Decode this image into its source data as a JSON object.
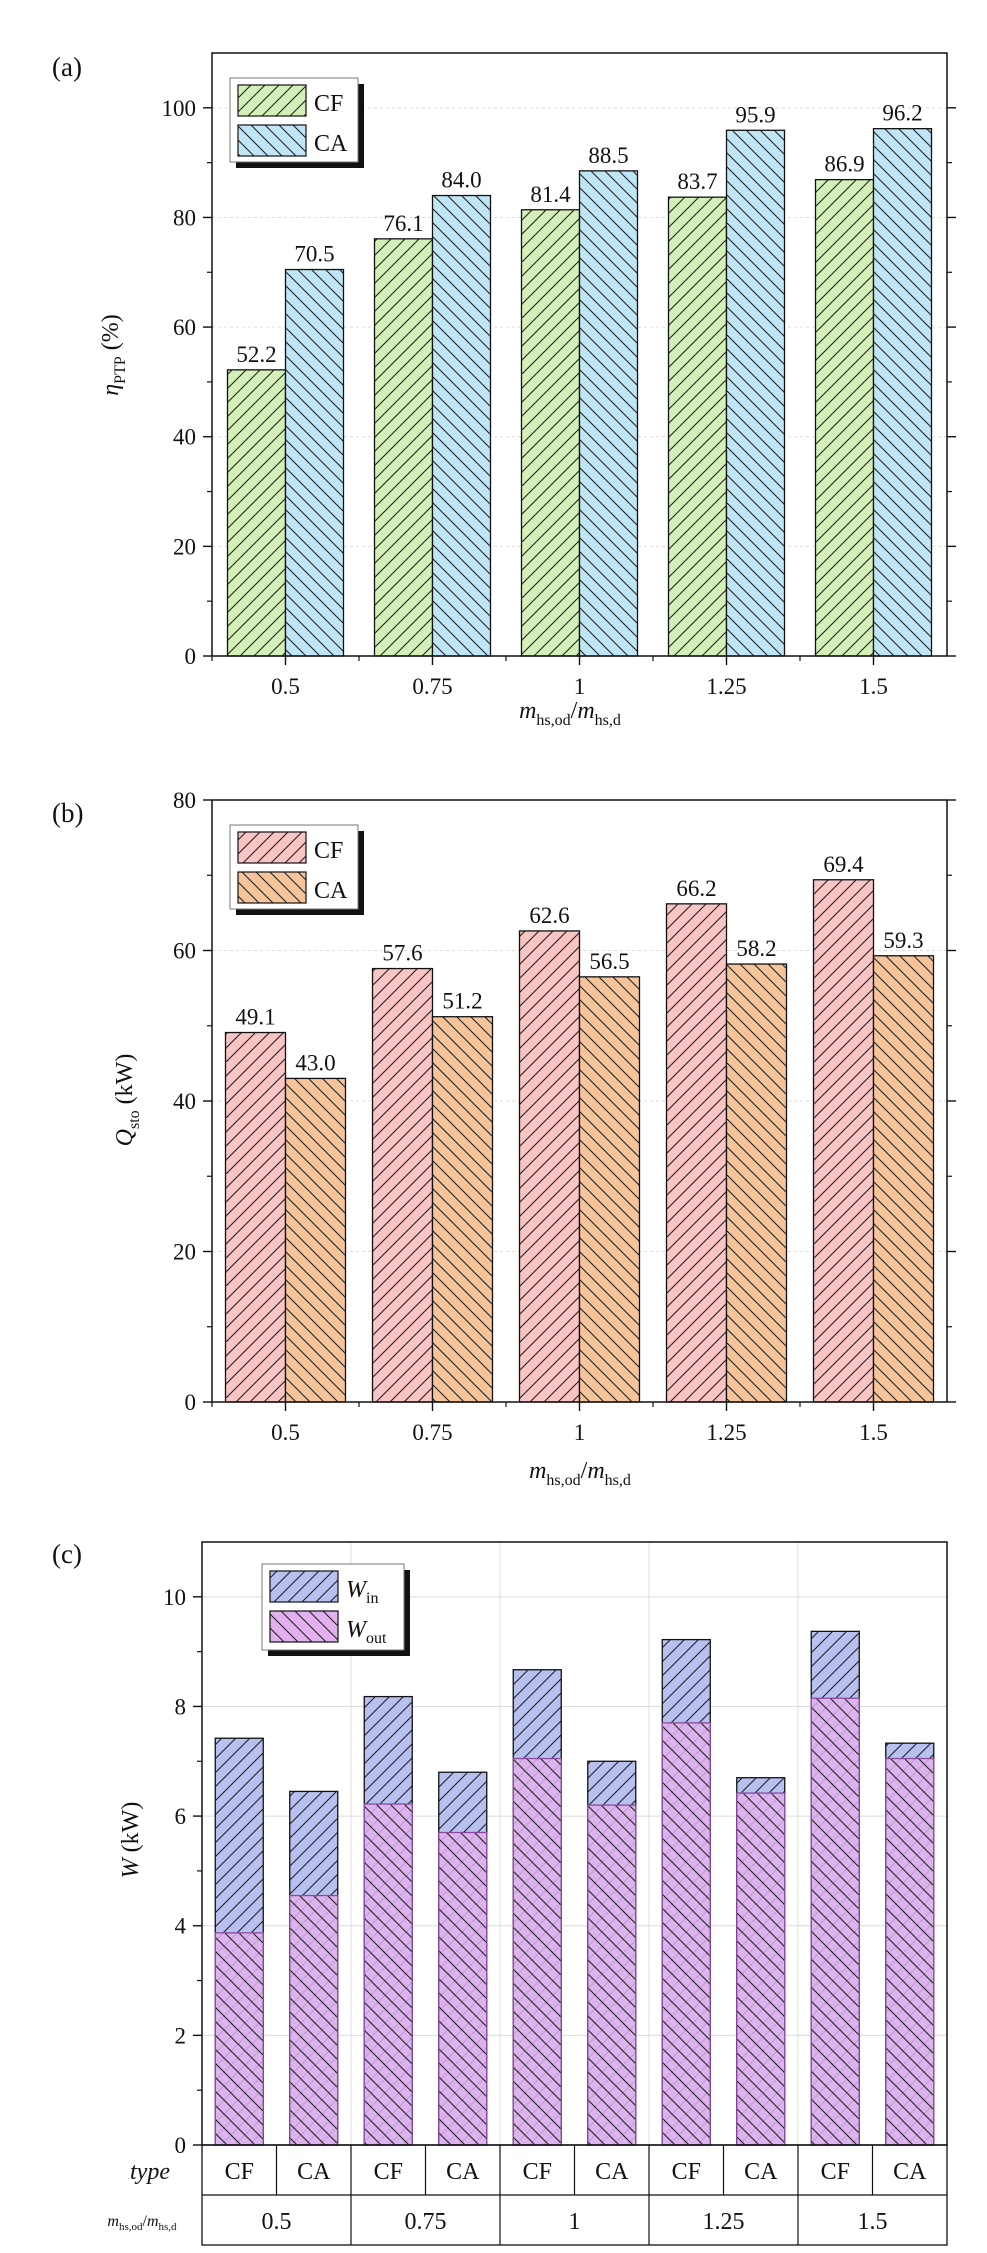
{
  "chart_data": [
    {
      "type": "bar",
      "panel": "(a)",
      "categories": [
        "0.5",
        "0.75",
        "1",
        "1.25",
        "1.5"
      ],
      "series": [
        {
          "name": "CF",
          "values": [
            52.2,
            76.1,
            81.4,
            83.7,
            86.9
          ],
          "labels": [
            "52.2",
            "76.1",
            "81.4",
            "83.7",
            "86.9"
          ],
          "color": "#d4f0b8",
          "hatch": "up"
        },
        {
          "name": "CA",
          "values": [
            70.5,
            84.0,
            88.5,
            95.9,
            96.2
          ],
          "labels": [
            "70.5",
            "84.0",
            "88.5",
            "95.9",
            "96.2"
          ],
          "color": "#bfe6f6",
          "hatch": "down"
        }
      ],
      "ylabel": "η_PTP (%)",
      "ylabel_main": "η",
      "ylabel_sub": "PTP",
      "ylabel_unit": " (%)",
      "xlabel": "m_hs,od/m_hs,d",
      "yticks": [
        "0",
        "20",
        "40",
        "60",
        "80",
        "100"
      ],
      "ylim": [
        0,
        110
      ],
      "legend": "top-left",
      "grid": true
    },
    {
      "type": "bar",
      "panel": "(b)",
      "categories": [
        "0.5",
        "0.75",
        "1",
        "1.25",
        "1.5"
      ],
      "series": [
        {
          "name": "CF",
          "values": [
            49.1,
            57.6,
            62.6,
            66.2,
            69.4
          ],
          "labels": [
            "49.1",
            "57.6",
            "62.6",
            "66.2",
            "69.4"
          ],
          "color": "#f8c4c4",
          "hatch": "up"
        },
        {
          "name": "CA",
          "values": [
            43.0,
            51.2,
            56.5,
            58.2,
            59.3
          ],
          "labels": [
            "43.0",
            "51.2",
            "56.5",
            "58.2",
            "59.3"
          ],
          "color": "#f7c49a",
          "hatch": "down"
        }
      ],
      "ylabel": "Q_sto (kW)",
      "ylabel_main": "Q",
      "ylabel_sub": "sto",
      "ylabel_unit": " (kW)",
      "xlabel": "m_hs,od/m_hs,d",
      "yticks": [
        "0",
        "20",
        "40",
        "60",
        "80"
      ],
      "ylim": [
        0,
        80
      ],
      "legend": "top-left",
      "grid": true
    },
    {
      "type": "bar",
      "panel": "(c)",
      "categories": [
        "CF",
        "CA",
        "CF",
        "CA",
        "CF",
        "CA",
        "CF",
        "CA",
        "CF",
        "CA"
      ],
      "groups": [
        "0.5",
        "0.75",
        "1",
        "1.25",
        "1.5"
      ],
      "series": [
        {
          "name": "W_in",
          "name_main": "W",
          "name_sub": "in",
          "values": [
            7.42,
            6.45,
            8.18,
            6.8,
            8.67,
            7.0,
            9.22,
            6.7,
            9.37,
            7.33
          ],
          "color": "#b8c0f0",
          "hatch": "up"
        },
        {
          "name": "W_out",
          "name_main": "W",
          "name_sub": "out",
          "values": [
            3.87,
            4.55,
            6.22,
            5.7,
            7.05,
            6.2,
            7.7,
            6.42,
            8.15,
            7.05
          ],
          "color": "#e2b0ef",
          "hatch": "down"
        }
      ],
      "ylabel": "W (kW)",
      "ylabel_main": "W",
      "ylabel_unit": " (kW)",
      "row_label_type": "type",
      "row_label_ratio": "m_hs,od/m_hs,d",
      "yticks": [
        "0",
        "2",
        "4",
        "6",
        "8",
        "10"
      ],
      "ylim": [
        0,
        11
      ],
      "legend": "top-left",
      "grid": true
    }
  ]
}
